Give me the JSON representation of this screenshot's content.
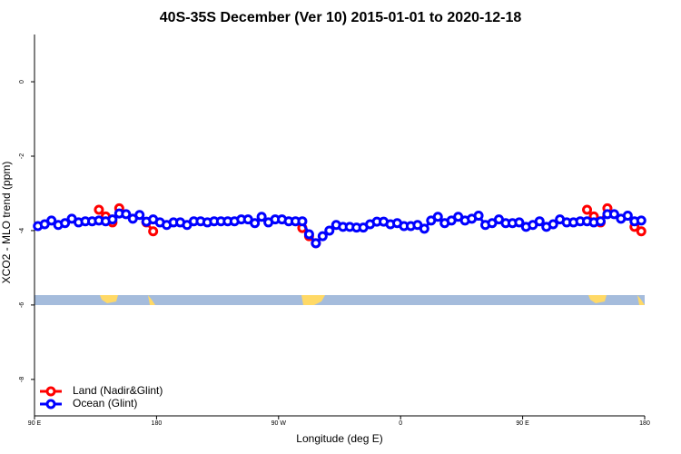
{
  "chart_data": {
    "type": "line",
    "title": "40S-35S December (Ver 10)   2015-01-01 to 2020-12-18",
    "x_label": "Longitude (deg E)",
    "y_label": "XCO2 - MLO trend (ppm)",
    "xlim": [
      90,
      540
    ],
    "xticks": [
      {
        "value": 90,
        "label": "90 E"
      },
      180,
      {
        "value": 270,
        "label": "90 W"
      },
      {
        "value": 360,
        "label": "0"
      },
      {
        "value": 450,
        "label": "90 E"
      },
      {
        "value": 540,
        "label": "180"
      }
    ],
    "ylim": [
      -8.98,
      1.27
    ],
    "yticks": [
      0,
      -2,
      -4,
      -6,
      -8
    ],
    "legend": "bottomleft",
    "series": [
      {
        "name": "Land (Nadir&Glint)",
        "color": "#ff0000",
        "x": [
          137.5,
          142.5,
          147.5,
          152.5,
          157.5,
          172.5,
          177.5,
          182.5,
          287.5,
          292.5,
          297.5,
          302.5,
          497.5,
          502.5,
          507.5,
          512.5,
          517.5,
          532.5,
          537.5
        ],
        "values": [
          -3.44,
          -3.62,
          -3.78,
          -3.4,
          null,
          -3.78,
          -4.02,
          null,
          -3.93,
          -4.15,
          -4.34,
          null,
          -3.44,
          -3.62,
          -3.78,
          -3.4,
          null,
          -3.9,
          -4.02
        ]
      },
      {
        "name": "Ocean (Glint)",
        "color": "#0000ff",
        "x": [
          92.5,
          97.5,
          102.5,
          107.5,
          112.5,
          117.5,
          122.5,
          127.5,
          132.5,
          137.5,
          142.5,
          147.5,
          152.5,
          157.5,
          162.5,
          167.5,
          172.5,
          177.5,
          182.5,
          187.5,
          192.5,
          197.5,
          202.5,
          207.5,
          212.5,
          217.5,
          222.5,
          227.5,
          232.5,
          237.5,
          242.5,
          247.5,
          252.5,
          257.5,
          262.5,
          267.5,
          272.5,
          277.5,
          282.5,
          287.5,
          292.5,
          297.5,
          302.5,
          307.5,
          312.5,
          317.5,
          322.5,
          327.5,
          332.5,
          337.5,
          342.5,
          347.5,
          352.5,
          357.5,
          362.5,
          367.5,
          372.5,
          377.5,
          382.5,
          387.5,
          392.5,
          397.5,
          402.5,
          407.5,
          412.5,
          417.5,
          422.5,
          427.5,
          432.5,
          437.5,
          442.5,
          447.5,
          452.5,
          457.5,
          462.5,
          467.5,
          472.5,
          477.5,
          482.5,
          487.5,
          492.5,
          497.5,
          502.5,
          507.5,
          512.5,
          517.5,
          522.5,
          527.5,
          532.5,
          537.5
        ],
        "values": [
          -3.88,
          -3.83,
          -3.73,
          -3.85,
          -3.8,
          -3.68,
          -3.78,
          -3.75,
          -3.75,
          -3.73,
          -3.75,
          -3.7,
          -3.54,
          -3.56,
          -3.68,
          -3.58,
          -3.76,
          -3.7,
          -3.78,
          -3.85,
          -3.78,
          -3.78,
          -3.85,
          -3.75,
          -3.75,
          -3.78,
          -3.75,
          -3.75,
          -3.75,
          -3.75,
          -3.7,
          -3.7,
          -3.8,
          -3.63,
          -3.78,
          -3.7,
          -3.7,
          -3.75,
          -3.75,
          -3.75,
          -4.1,
          -4.34,
          -4.15,
          -4.0,
          -3.85,
          -3.9,
          -3.9,
          -3.92,
          -3.92,
          -3.83,
          -3.76,
          -3.76,
          -3.83,
          -3.8,
          -3.88,
          -3.88,
          -3.85,
          -3.95,
          -3.73,
          -3.63,
          -3.8,
          -3.73,
          -3.63,
          -3.73,
          -3.68,
          -3.6,
          -3.85,
          -3.8,
          -3.7,
          -3.8,
          -3.8,
          -3.78,
          -3.9,
          -3.85,
          -3.75,
          -3.9,
          -3.83,
          -3.7,
          -3.78,
          -3.78,
          -3.75,
          -3.75,
          -3.78,
          -3.75,
          -3.56,
          -3.56,
          -3.68,
          -3.6,
          -3.75,
          -3.73
        ]
      }
    ]
  }
}
